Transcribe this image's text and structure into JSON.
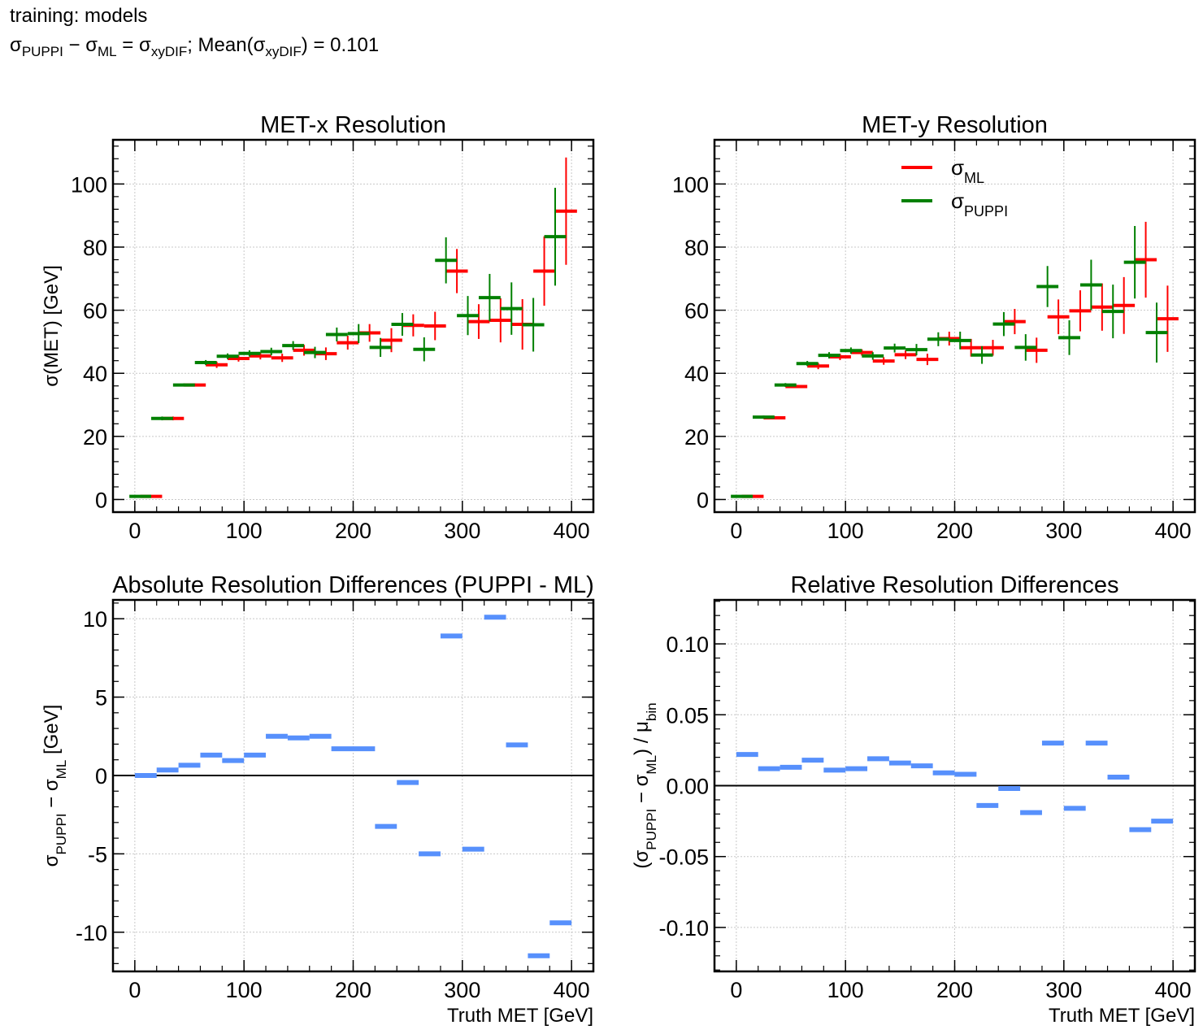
{
  "header": {
    "line1": "training: models",
    "line2_parts": [
      "σ",
      "PUPPI",
      " − σ",
      "ML",
      " = σ",
      "xyDIF",
      ";  Mean(σ",
      "xyDIF",
      ") = 0.101"
    ]
  },
  "colors": {
    "ml": "#ff0000",
    "puppi": "#008000",
    "diff": "#5790fc",
    "grid": "#c8c8c8"
  },
  "chart_data": [
    {
      "type": "errorbar",
      "title": "MET-x Resolution",
      "xlabel": "",
      "ylabel": "σ(MET) [GeV]",
      "xlim": [
        -20,
        420
      ],
      "ylim": [
        -4,
        114
      ],
      "xticks": [
        0,
        100,
        200,
        300,
        400
      ],
      "yticks": [
        0,
        20,
        40,
        60,
        80,
        100
      ],
      "bin_edges": [
        0,
        20,
        40,
        60,
        80,
        100,
        120,
        140,
        160,
        180,
        200,
        220,
        240,
        260,
        280,
        300,
        320,
        340,
        360,
        380,
        400
      ],
      "series": [
        {
          "key": "ml",
          "offset": 5,
          "values": [
            1,
            25.7,
            36.3,
            42.7,
            44.7,
            45.5,
            44.9,
            47.3,
            46.2,
            49.7,
            52.8,
            50.5,
            55.2,
            55.0,
            72.4,
            56.4,
            56.8,
            55.5,
            72.4,
            91.4
          ],
          "errors": [
            0.2,
            0.6,
            0.5,
            1.0,
            1.0,
            1.1,
            1.3,
            1.7,
            2.0,
            2.2,
            2.8,
            3.8,
            3.5,
            4.5,
            7.0,
            5.5,
            7.0,
            8.0,
            11.0,
            17.0
          ]
        },
        {
          "key": "puppi",
          "offset": -5,
          "values": [
            1,
            25.7,
            36.3,
            43.4,
            45.4,
            46.3,
            46.9,
            48.8,
            46.6,
            52.3,
            52.6,
            48.2,
            55.5,
            47.6,
            75.8,
            58.3,
            64.0,
            60.5,
            55.4,
            83.3
          ],
          "errors": [
            0.2,
            0.6,
            0.5,
            0.8,
            0.9,
            1.0,
            1.2,
            1.4,
            1.8,
            2.2,
            3.0,
            3.0,
            3.6,
            3.8,
            7.3,
            6.2,
            7.5,
            8.3,
            8.5,
            15.5
          ]
        }
      ]
    },
    {
      "type": "errorbar",
      "title": "MET-y Resolution",
      "xlabel": "",
      "ylabel": "",
      "xlim": [
        -20,
        420
      ],
      "ylim": [
        -4,
        114
      ],
      "xticks": [
        0,
        100,
        200,
        300,
        400
      ],
      "yticks": [
        0,
        20,
        40,
        60,
        80,
        100
      ],
      "bin_edges": [
        0,
        20,
        40,
        60,
        80,
        100,
        120,
        140,
        160,
        180,
        200,
        220,
        240,
        260,
        280,
        300,
        320,
        340,
        360,
        380,
        400
      ],
      "legend": {
        "position": "top-center",
        "entries": [
          {
            "key": "ml",
            "base": "σ",
            "sub": "ML"
          },
          {
            "key": "puppi",
            "base": "σ",
            "sub": "PUPPI"
          }
        ]
      },
      "series": [
        {
          "key": "ml",
          "offset": 5,
          "values": [
            1,
            25.9,
            35.8,
            42.3,
            45.2,
            46.6,
            43.9,
            45.9,
            44.4,
            51.0,
            48.1,
            48.1,
            56.4,
            47.3,
            57.9,
            59.8,
            61.0,
            61.5,
            76.0,
            57.3
          ],
          "errors": [
            0.2,
            0.5,
            0.5,
            1.0,
            1.0,
            1.0,
            1.2,
            1.4,
            1.8,
            2.2,
            2.8,
            2.5,
            4.0,
            4.0,
            5.5,
            6.5,
            7.5,
            9.0,
            12.0,
            10.5
          ]
        },
        {
          "key": "puppi",
          "offset": -5,
          "values": [
            1,
            26.1,
            36.3,
            43.1,
            45.7,
            47.2,
            45.5,
            48.0,
            47.5,
            50.8,
            50.4,
            45.8,
            55.6,
            48.2,
            67.5,
            51.3,
            68.0,
            59.6,
            75.2,
            52.9
          ],
          "errors": [
            0.2,
            0.5,
            0.6,
            0.8,
            1.0,
            1.0,
            1.2,
            1.4,
            1.8,
            2.2,
            2.8,
            2.8,
            3.8,
            4.2,
            6.5,
            5.5,
            8.0,
            8.5,
            11.5,
            9.5
          ]
        }
      ]
    },
    {
      "type": "step-bar",
      "title": "Absolute Resolution Differences (PUPPI - ML)",
      "xlabel": "Truth MET [GeV]",
      "ylabel": {
        "parts": [
          "σ",
          "PUPPI",
          " − σ",
          "ML",
          " [GeV]"
        ]
      },
      "xlim": [
        -20,
        420
      ],
      "ylim": [
        -12.5,
        11.2
      ],
      "xticks": [
        0,
        100,
        200,
        300,
        400
      ],
      "yticks": [
        10,
        5,
        0,
        -5,
        -10
      ],
      "ytick_labels": [
        "10",
        "5",
        "0",
        "-5",
        "-10"
      ],
      "hline": 0,
      "bin_edges": [
        0,
        20,
        40,
        60,
        80,
        100,
        120,
        140,
        160,
        180,
        200,
        220,
        240,
        260,
        280,
        300,
        320,
        340,
        360,
        380,
        400
      ],
      "values": [
        0.0,
        0.35,
        0.65,
        1.3,
        0.95,
        1.3,
        2.5,
        2.4,
        2.5,
        1.7,
        1.7,
        -3.25,
        -0.45,
        -5.0,
        8.9,
        -4.7,
        10.1,
        1.95,
        -11.5,
        -9.4
      ]
    },
    {
      "type": "step-bar",
      "title": "Relative Resolution Differences",
      "xlabel": "Truth MET [GeV]",
      "ylabel": {
        "parts": [
          "(σ",
          "PUPPI",
          " − σ",
          "ML",
          ") / μ",
          "bin"
        ]
      },
      "xlim": [
        -20,
        420
      ],
      "ylim": [
        -0.131,
        0.131
      ],
      "xticks": [
        0,
        100,
        200,
        300,
        400
      ],
      "yticks": [
        0.1,
        0.05,
        0.0,
        -0.05,
        -0.1
      ],
      "ytick_labels": [
        "0.10",
        "0.05",
        "0.00",
        "-0.05",
        "-0.10"
      ],
      "hline": 0,
      "bin_edges": [
        0,
        20,
        40,
        60,
        80,
        100,
        120,
        140,
        160,
        180,
        200,
        220,
        240,
        260,
        280,
        300,
        320,
        340,
        360,
        380,
        400
      ],
      "values": [
        0.022,
        0.012,
        0.013,
        0.018,
        0.011,
        0.012,
        0.019,
        0.016,
        0.014,
        0.009,
        0.008,
        -0.014,
        -0.002,
        -0.019,
        0.03,
        -0.016,
        0.03,
        0.006,
        -0.031,
        -0.025
      ]
    }
  ]
}
